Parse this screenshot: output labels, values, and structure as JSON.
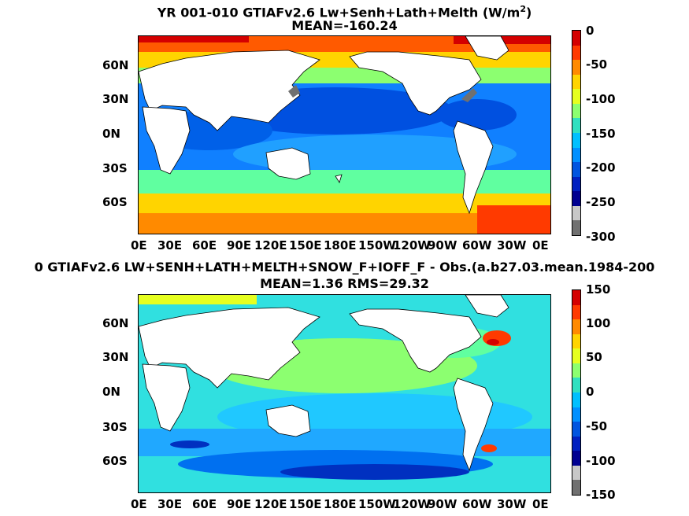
{
  "panel1": {
    "title_line1": "YR 001-010 GTIAFv2.6 Lw+Senh+Lath+Melth (W/m",
    "title_sup": "2",
    "title_close": ")",
    "title_line2": "MEAN=-160.24",
    "lat_ticks": [
      "60N",
      "30N",
      "0N",
      "30S",
      "60S"
    ],
    "lon_ticks": [
      "0E",
      "30E",
      "60E",
      "90E",
      "120E",
      "150E",
      "180E",
      "150W",
      "120W",
      "90W",
      "60W",
      "30W",
      "0E"
    ],
    "colorbar_ticks": [
      "0",
      "-50",
      "-100",
      "-150",
      "-200",
      "-250",
      "-300"
    ],
    "colorbar_colors": [
      "#d40000",
      "#ff3a00",
      "#ff8a00",
      "#ffd400",
      "#e6ff20",
      "#8cff70",
      "#30e0c0",
      "#00c0ff",
      "#0090ff",
      "#0055e0",
      "#0020c0",
      "#000090",
      "#c8c8c8",
      "#707070"
    ]
  },
  "panel2": {
    "title_line1": "0 GTIAFv2.6 LW+SENH+LATH+MELTH+SNOW_F+IOFF_F - Obs.(a.b27.03.mean.1984-200",
    "title_line2": "MEAN=1.36 RMS=29.32",
    "lat_ticks": [
      "60N",
      "30N",
      "0N",
      "30S",
      "60S"
    ],
    "lon_ticks": [
      "0E",
      "30E",
      "60E",
      "90E",
      "120E",
      "150E",
      "180E",
      "150W",
      "120W",
      "90W",
      "60W",
      "30W",
      "0E"
    ],
    "colorbar_ticks": [
      "150",
      "100",
      "50",
      "0",
      "-50",
      "-100",
      "-150"
    ],
    "colorbar_colors": [
      "#d40000",
      "#ff3a00",
      "#ff8a00",
      "#ffd400",
      "#e6ff20",
      "#8cff70",
      "#30e0c0",
      "#00c0ff",
      "#0090ff",
      "#0055e0",
      "#0020c0",
      "#000090",
      "#c8c8c8",
      "#707070"
    ]
  },
  "colors": {
    "land": "#ffffff",
    "coast": "#000000",
    "ocean_mean_panel1": "#0a8cff",
    "ocean_mean_panel2": "#30e0e0"
  }
}
